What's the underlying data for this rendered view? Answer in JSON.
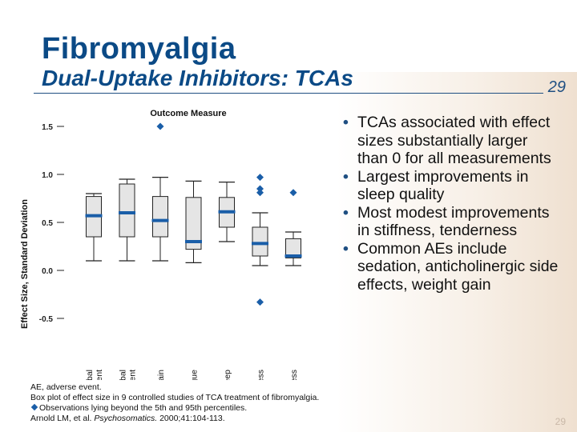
{
  "header": {
    "title": "Fibromyalgia",
    "subtitle": "Dual-Uptake Inhibitors: TCAs",
    "slide_number": "29",
    "slide_number_bottom": "29"
  },
  "bullets": [
    "TCAs associated with effect sizes substantially larger than 0 for all measurements",
    "Largest improvements in sleep quality",
    "Most modest improvements in stiffness, tenderness",
    "Common AEs include sedation, anticholinergic side effects, weight gain"
  ],
  "footnotes": {
    "abbrev": "AE, adverse event.",
    "caption": "Box plot of effect size in 9 controlled studies of TCA treatment of fibromyalgia.",
    "outlier_note": "Observations lying beyond the 5th and 95th percentiles.",
    "citation_authors": "Arnold LM, et al.",
    "citation_journal": "Psychosomatics.",
    "citation_rest": "2000;41:104-113."
  },
  "colors": {
    "title": "#0b4a86",
    "box_fill": "#e5e5e5",
    "median": "#1a5ea8",
    "outlier": "#1a5ea8",
    "rule": "#1f4f82"
  },
  "chart_data": {
    "type": "box",
    "title": "Outcome Measure",
    "xlabel": "",
    "ylabel": "Effect Size, Standard Deviation",
    "ylim": [
      -0.6,
      1.55
    ],
    "yticks": [
      "1.5",
      "1.0",
      "0.5",
      "0.0",
      "-0.5"
    ],
    "categories": [
      {
        "name": "Patient Global Assessment",
        "lines": [
          "Patient Global",
          "Assessment"
        ],
        "whisker_low": 0.1,
        "q1": 0.35,
        "median": 0.57,
        "q3": 0.77,
        "whisker_high": 0.8,
        "outliers": []
      },
      {
        "name": "M.D. Global Assessment",
        "lines": [
          "M.D. Global",
          "Assessment"
        ],
        "whisker_low": 0.1,
        "q1": 0.35,
        "median": 0.6,
        "q3": 0.9,
        "whisker_high": 0.95,
        "outliers": []
      },
      {
        "name": "Pain",
        "lines": [
          "Pain"
        ],
        "whisker_low": 0.1,
        "q1": 0.35,
        "median": 0.52,
        "q3": 0.77,
        "whisker_high": 0.97,
        "outliers": [
          1.5
        ]
      },
      {
        "name": "Fatigue",
        "lines": [
          "Fatigue"
        ],
        "whisker_low": 0.08,
        "q1": 0.22,
        "median": 0.3,
        "q3": 0.76,
        "whisker_high": 0.93,
        "outliers": []
      },
      {
        "name": "Sleep",
        "lines": [
          "Sleep"
        ],
        "whisker_low": 0.3,
        "q1": 0.45,
        "median": 0.61,
        "q3": 0.76,
        "whisker_high": 0.92,
        "outliers": []
      },
      {
        "name": "Tenderness",
        "lines": [
          "Tenderness"
        ],
        "whisker_low": 0.05,
        "q1": 0.15,
        "median": 0.28,
        "q3": 0.45,
        "whisker_high": 0.6,
        "outliers": [
          0.97,
          0.85,
          0.81,
          -0.33
        ]
      },
      {
        "name": "Stiffness",
        "lines": [
          "Stiffness"
        ],
        "whisker_low": 0.05,
        "q1": 0.13,
        "median": 0.15,
        "q3": 0.33,
        "whisker_high": 0.4,
        "outliers": [
          0.81
        ]
      }
    ]
  }
}
